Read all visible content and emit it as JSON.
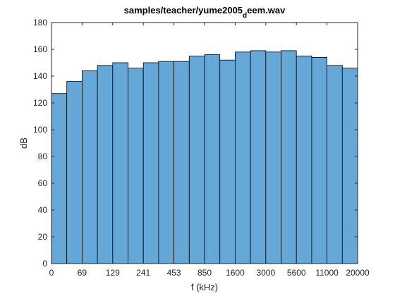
{
  "chart_data": {
    "type": "bar",
    "title_main": "samples/teacher/yume2005",
    "title_sub": "d",
    "title_tail": "eem.wav",
    "xlabel": "f (kHz)",
    "ylabel": "dB",
    "ylim": [
      0,
      180
    ],
    "yticks": [
      0,
      20,
      40,
      60,
      80,
      100,
      120,
      140,
      160,
      180
    ],
    "xtick_labels": [
      "0",
      "69",
      "129",
      "241",
      "453",
      "850",
      "1600",
      "3000",
      "5600",
      "11000",
      "20000"
    ],
    "values": [
      127,
      136,
      144,
      148,
      150,
      146,
      150,
      151,
      151,
      155,
      156,
      152,
      158,
      159,
      158,
      159,
      155,
      154,
      148,
      146
    ],
    "grid": false,
    "bar_color": "#65a7d7"
  }
}
